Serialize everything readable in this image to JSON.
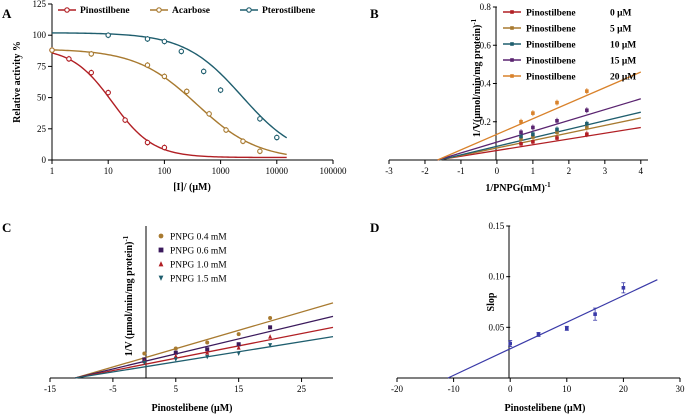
{
  "chart_data": [
    {
      "panel": "A",
      "type": "line",
      "xscale": "log",
      "xlabel": "[I]/ (μM)",
      "ylabel": "Relative activity %",
      "xlim": [
        1,
        100000
      ],
      "ylim": [
        0,
        125
      ],
      "xticks": [
        1,
        10,
        100,
        1000,
        10000,
        100000
      ],
      "xtick_labels": [
        "1",
        "10",
        "100",
        "1000",
        "10000",
        "100000"
      ],
      "yticks": [
        0,
        25,
        50,
        75,
        100,
        125
      ],
      "legend_position": "top",
      "series": [
        {
          "name": "Pinostilbene",
          "color": "#b11f24",
          "marker": "o",
          "x": [
            1,
            2,
            5,
            10,
            20,
            50,
            100
          ],
          "y": [
            88,
            81,
            70,
            54,
            32,
            14,
            10
          ],
          "curve": {
            "top": 90,
            "bottom": 2,
            "ic50": 12,
            "hill": 1.2
          }
        },
        {
          "name": "Acarbose",
          "color": "#a87a30",
          "marker": "o",
          "x": [
            1,
            5,
            50,
            100,
            250,
            625,
            1250,
            2500,
            5000
          ],
          "y": [
            88,
            85,
            76,
            67,
            55,
            37,
            24,
            15,
            7
          ],
          "curve": {
            "top": 89,
            "bottom": 0,
            "ic50": 380,
            "hill": 0.8
          }
        },
        {
          "name": "Pterostilbene",
          "color": "#1f5e6e",
          "marker": "o",
          "x": [
            10,
            50,
            100,
            200,
            500,
            1000,
            5000,
            10000
          ],
          "y": [
            100,
            97,
            95,
            87,
            71,
            56,
            33,
            18
          ],
          "curve": {
            "top": 102,
            "bottom": 0,
            "ic50": 2400,
            "hill": 0.85
          }
        }
      ]
    },
    {
      "panel": "B",
      "type": "scatter",
      "xlabel": "1/PNPG(mM)-1",
      "ylabel": "1/V(μmol/min/mg protein)-1",
      "xlim": [
        -3,
        4.2
      ],
      "ylim": [
        0,
        0.8
      ],
      "xticks": [
        -3,
        -2,
        -1,
        0,
        1,
        2,
        3,
        4
      ],
      "yticks": [
        0.2,
        0.4,
        0.6,
        0.8
      ],
      "legend_position": "top-right",
      "series": [
        {
          "name": "Pinostilbene",
          "conc": "0 μM",
          "color": "#b11f24",
          "x": [
            0.67,
            1,
            1.67,
            2.5
          ],
          "y": [
            0.085,
            0.095,
            0.115,
            0.135
          ],
          "line": {
            "x0": -1.65,
            "x1": 4,
            "y0": 0,
            "y1": 0.17
          }
        },
        {
          "name": "Pinostilbene",
          "conc": "5 μM",
          "color": "#a87a30",
          "x": [
            0.67,
            1,
            1.67,
            2.5
          ],
          "y": [
            0.11,
            0.12,
            0.145,
            0.17
          ],
          "line": {
            "x0": -1.6,
            "x1": 4,
            "y0": 0,
            "y1": 0.22
          }
        },
        {
          "name": "Pinostilbene",
          "conc": "10 μM",
          "color": "#1f5e6e",
          "x": [
            0.67,
            1,
            1.67,
            2.5
          ],
          "y": [
            0.125,
            0.135,
            0.16,
            0.19
          ],
          "line": {
            "x0": -1.6,
            "x1": 4,
            "y0": 0,
            "y1": 0.25
          }
        },
        {
          "name": "Pinostilbene",
          "conc": "15 μM",
          "color": "#5a2470",
          "x": [
            0.67,
            1,
            1.67,
            2.5
          ],
          "y": [
            0.145,
            0.17,
            0.205,
            0.26
          ],
          "line": {
            "x0": -1.65,
            "x1": 4,
            "y0": 0,
            "y1": 0.32
          }
        },
        {
          "name": "Pinostilbene",
          "conc": "20 μM",
          "color": "#d9822b",
          "x": [
            0.67,
            1,
            1.67,
            2.5
          ],
          "y": [
            0.2,
            0.245,
            0.3,
            0.36
          ],
          "line": {
            "x0": -1.65,
            "x1": 4,
            "y0": 0,
            "y1": 0.46
          }
        }
      ]
    },
    {
      "panel": "C",
      "type": "scatter",
      "xlabel": "Pinostelibene (μM)",
      "ylabel": "1/V (μmol/min/mg protein)-1",
      "xlim": [
        -15,
        30
      ],
      "ylim": [
        0,
        0.9
      ],
      "xticks": [
        -15,
        -5,
        5,
        15,
        25
      ],
      "legend_position": "top-left",
      "series": [
        {
          "name": "PNPG 0.4 mM",
          "color": "#a87a30",
          "marker": "o",
          "x": [
            0,
            5,
            10,
            15,
            20
          ],
          "y": [
            0.145,
            0.175,
            0.21,
            0.26,
            0.355
          ],
          "line": {
            "x0": -11,
            "x1": 30,
            "y0": 0,
            "y1": 0.445
          }
        },
        {
          "name": "PNPG 0.6 mM",
          "color": "#3b1a5c",
          "marker": "s",
          "x": [
            0,
            5,
            10,
            15,
            20
          ],
          "y": [
            0.11,
            0.15,
            0.17,
            0.2,
            0.3
          ],
          "line": {
            "x0": -11,
            "x1": 30,
            "y0": 0,
            "y1": 0.365
          }
        },
        {
          "name": "PNPG 1.0 mM",
          "color": "#b11f24",
          "marker": "^",
          "x": [
            0,
            5,
            10,
            15,
            20
          ],
          "y": [
            0.1,
            0.13,
            0.15,
            0.18,
            0.245
          ],
          "line": {
            "x0": -11,
            "x1": 30,
            "y0": 0,
            "y1": 0.3
          }
        },
        {
          "name": "PNPG 1.5 mM",
          "color": "#1f5e6e",
          "marker": "v",
          "x": [
            0,
            5,
            10,
            15,
            20
          ],
          "y": [
            0.09,
            0.11,
            0.125,
            0.145,
            0.195
          ],
          "line": {
            "x0": -11,
            "x1": 30,
            "y0": 0,
            "y1": 0.245
          }
        }
      ]
    },
    {
      "panel": "D",
      "type": "scatter",
      "xlabel": "Pinostelibene (μM)",
      "ylabel": "Slop",
      "xlim": [
        -20,
        30
      ],
      "ylim": [
        0,
        0.15
      ],
      "xticks": [
        -20,
        -10,
        0,
        10,
        20,
        30
      ],
      "yticks": [
        0.05,
        0.1,
        0.15
      ],
      "series": [
        {
          "name": "Slop",
          "color": "#3a3aa8",
          "x": [
            0,
            5,
            10,
            15,
            20
          ],
          "y": [
            0.034,
            0.043,
            0.049,
            0.063,
            0.089
          ],
          "err": [
            0.003,
            0.002,
            0.002,
            0.006,
            0.005
          ],
          "line": {
            "x0": -11,
            "x1": 26,
            "y0": 0,
            "y1": 0.097
          }
        }
      ]
    }
  ],
  "panel_letters": [
    "A",
    "B",
    "C",
    "D"
  ]
}
